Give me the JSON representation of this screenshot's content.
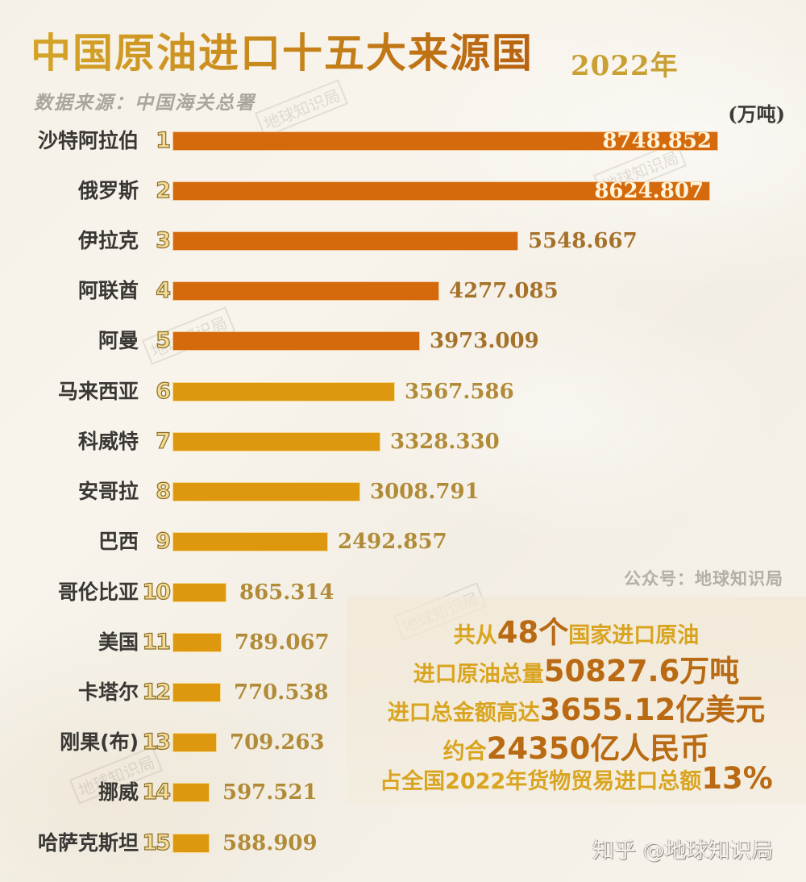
{
  "header": {
    "title": "中国原油进口十五大来源国",
    "year": "2022年",
    "source": "数据来源：中国海关总署",
    "unit": "(万吨)"
  },
  "colors": {
    "top5_bar": "#d46a0c",
    "rest_bar": "#dd9810",
    "title_gold": "#c98a1c",
    "value_text": "#b18b38",
    "background": "#f6f1e7"
  },
  "chart_data": {
    "type": "bar",
    "orientation": "horizontal",
    "title": "中国原油进口十五大来源国 2022年",
    "subtitle": "数据来源：中国海关总署",
    "xlabel": "",
    "ylabel": "",
    "unit": "万吨",
    "grid": false,
    "legend": null,
    "categories": [
      "沙特阿拉伯",
      "俄罗斯",
      "伊拉克",
      "阿联酋",
      "阿曼",
      "马来西亚",
      "科威特",
      "安哥拉",
      "巴西",
      "哥伦比亚",
      "美国",
      "卡塔尔",
      "刚果(布)",
      "挪威",
      "哈萨克斯坦"
    ],
    "ranks": [
      1,
      2,
      3,
      4,
      5,
      6,
      7,
      8,
      9,
      10,
      11,
      12,
      13,
      14,
      15
    ],
    "values": [
      8748.852,
      8624.807,
      5548.667,
      4277.085,
      3973.009,
      3567.586,
      3328.33,
      3008.791,
      2492.857,
      865.314,
      789.067,
      770.538,
      709.263,
      597.521,
      588.909
    ],
    "value_labels": [
      "8748.852",
      "8624.807",
      "5548.667",
      "4277.085",
      "3973.009",
      "3567.586",
      "3328.330",
      "3008.791",
      "2492.857",
      "865.314",
      "789.067",
      "770.538",
      "709.263",
      "597.521",
      "588.909"
    ],
    "xlim": [
      0,
      8748.852
    ]
  },
  "rows": [
    {
      "country": "沙特阿拉伯",
      "rank": "1",
      "value": "8748.852"
    },
    {
      "country": "俄罗斯",
      "rank": "2",
      "value": "8624.807"
    },
    {
      "country": "伊拉克",
      "rank": "3",
      "value": "5548.667"
    },
    {
      "country": "阿联酋",
      "rank": "4",
      "value": "4277.085"
    },
    {
      "country": "阿曼",
      "rank": "5",
      "value": "3973.009"
    },
    {
      "country": "马来西亚",
      "rank": "6",
      "value": "3567.586"
    },
    {
      "country": "科威特",
      "rank": "7",
      "value": "3328.330"
    },
    {
      "country": "安哥拉",
      "rank": "8",
      "value": "3008.791"
    },
    {
      "country": "巴西",
      "rank": "9",
      "value": "2492.857"
    },
    {
      "country": "哥伦比亚",
      "rank": "10",
      "value": "865.314"
    },
    {
      "country": "美国",
      "rank": "11",
      "value": "789.067"
    },
    {
      "country": "卡塔尔",
      "rank": "12",
      "value": "770.538"
    },
    {
      "country": "刚果(布)",
      "rank": "13",
      "value": "709.263"
    },
    {
      "country": "挪威",
      "rank": "14",
      "value": "597.521"
    },
    {
      "country": "哈萨克斯坦",
      "rank": "15",
      "value": "588.909"
    }
  ],
  "public_account": "公众号：地球知识局",
  "summary": {
    "line1": {
      "pre": "共从",
      "num": "48个",
      "post": "国家进口原油"
    },
    "line2": {
      "pre": "进口原油总量",
      "num": "50827.6万吨",
      "post": ""
    },
    "line3": {
      "pre": "进口总金额高达",
      "num": "3655.12亿美元",
      "post": ""
    },
    "line4": {
      "pre": "约合",
      "num": "24350亿人民币",
      "post": ""
    },
    "line5": {
      "pre": "占全国2022年货物贸易进口总额",
      "num": "13%",
      "post": ""
    }
  },
  "watermarks": {
    "text": "地球知识局",
    "zhihu": "知乎 @地球知识局"
  }
}
